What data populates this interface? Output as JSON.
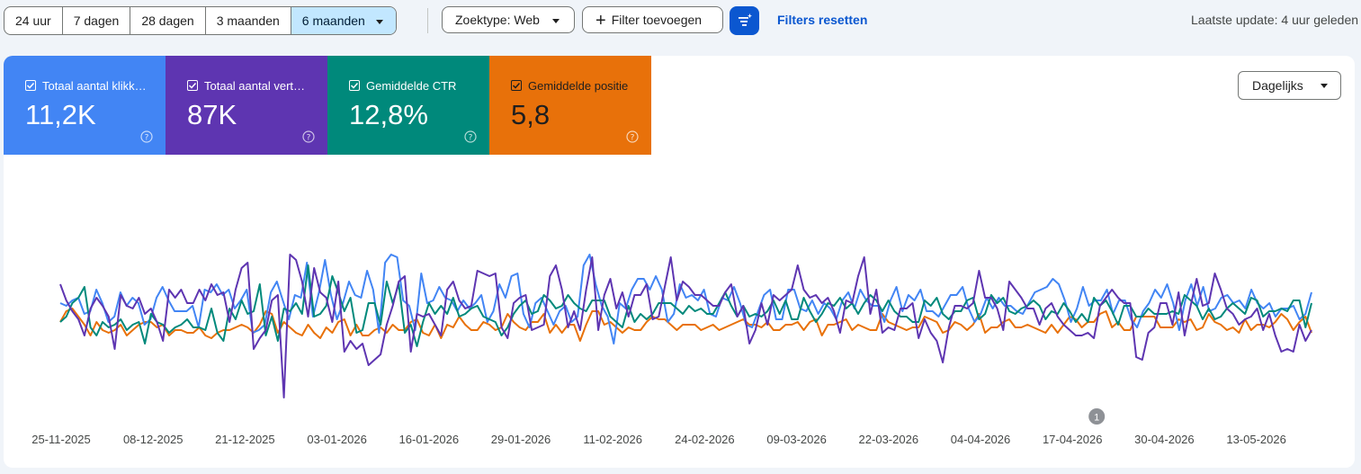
{
  "toolbar": {
    "ranges": [
      "24 uur",
      "7 dagen",
      "28 dagen",
      "3 maanden",
      "6 maanden"
    ],
    "active_range": "6 maanden",
    "search_type": "Zoektype: Web",
    "add_filter": "Filter toevoegen",
    "reset_filters": "Filters resetten",
    "last_update": "Laatste update: 4 uur geleden"
  },
  "metrics": {
    "clicks": {
      "label": "Totaal aantal klikk…",
      "value": "11,2K",
      "color": "#4285f4"
    },
    "impressions": {
      "label": "Totaal aantal vert…",
      "value": "87K",
      "color": "#5e35b1"
    },
    "ctr": {
      "label": "Gemiddelde CTR",
      "value": "12,8%",
      "color": "#00897b"
    },
    "position": {
      "label": "Gemiddelde positie",
      "value": "5,8",
      "color": "#e8710a"
    }
  },
  "granularity": "Dagelijks",
  "annotation_badge": "1",
  "chart_data": {
    "type": "line",
    "x_tick_labels": [
      "25-11-2025",
      "08-12-2025",
      "21-12-2025",
      "03-01-2026",
      "16-01-2026",
      "29-01-2026",
      "11-02-2026",
      "24-02-2026",
      "09-03-2026",
      "22-03-2026",
      "04-04-2026",
      "17-04-2026",
      "30-04-2026",
      "13-05-2026"
    ],
    "annotation": {
      "date": "17-04-2026",
      "label": "1"
    },
    "series": [
      {
        "name": "Totaal aantal vert…",
        "color": "#5e35b1",
        "values": [
          62,
          56,
          52,
          49,
          43,
          53,
          57,
          54,
          50,
          38,
          58,
          54,
          53,
          57,
          51,
          53,
          48,
          41,
          60,
          57,
          60,
          55,
          55,
          60,
          56,
          62,
          58,
          59,
          48,
          60,
          68,
          70,
          38,
          42,
          45,
          56,
          58,
          20,
          73,
          71,
          63,
          50,
          68,
          59,
          57,
          48,
          63,
          37,
          41,
          38,
          40,
          32,
          34,
          36,
          47,
          54,
          63,
          65,
          37,
          51,
          50,
          51,
          47,
          43,
          60,
          63,
          56,
          53,
          54,
          67,
          66,
          65,
          66,
          46,
          42,
          55,
          57,
          58,
          45,
          46,
          47,
          65,
          69,
          60,
          46,
          52,
          45,
          60,
          72,
          45,
          58,
          64,
          53,
          59,
          50,
          58,
          58,
          62,
          49,
          50,
          61,
          72,
          56,
          63,
          61,
          58,
          58,
          56,
          54,
          54,
          59,
          62,
          50,
          54,
          40,
          45,
          55,
          47,
          58,
          56,
          58,
          60,
          69,
          60,
          57,
          58,
          55,
          57,
          52,
          44,
          56,
          55,
          65,
          72,
          51,
          60,
          44,
          46,
          45,
          53,
          53,
          55,
          42,
          49,
          44,
          41,
          33,
          46,
          54,
          54,
          53,
          55,
          67,
          57,
          57,
          53,
          45,
          63,
          60,
          57,
          53,
          53,
          47,
          53,
          55,
          50,
          47,
          45,
          43,
          43,
          44,
          42,
          54,
          57,
          60,
          57,
          55,
          55,
          35,
          34,
          44,
          46,
          55,
          55,
          47,
          59,
          43,
          54,
          64,
          54,
          55,
          66,
          60,
          53,
          51,
          47,
          49,
          50,
          53,
          45,
          51,
          43,
          37,
          38,
          37,
          47,
          41,
          45
        ]
      },
      {
        "name": "Totaal aantal klikk…",
        "color": "#4285f4",
        "values": [
          55,
          54,
          56,
          57,
          51,
          52,
          60,
          55,
          48,
          50,
          59,
          54,
          57,
          55,
          47,
          49,
          57,
          61,
          56,
          52,
          52,
          52,
          54,
          46,
          60,
          59,
          62,
          58,
          60,
          53,
          56,
          60,
          44,
          45,
          47,
          59,
          63,
          56,
          49,
          58,
          57,
          70,
          50,
          59,
          71,
          58,
          49,
          55,
          63,
          58,
          57,
          67,
          60,
          44,
          70,
          73,
          72,
          56,
          54,
          45,
          66,
          55,
          56,
          61,
          57,
          56,
          52,
          56,
          53,
          55,
          58,
          48,
          52,
          62,
          57,
          65,
          66,
          51,
          46,
          55,
          57,
          52,
          47,
          52,
          54,
          48,
          50,
          69,
          73,
          62,
          54,
          50,
          40,
          55,
          53,
          60,
          64,
          64,
          60,
          65,
          60,
          48,
          51,
          62,
          57,
          58,
          56,
          60,
          51,
          50,
          57,
          56,
          61,
          55,
          47,
          46,
          52,
          58,
          60,
          49,
          49,
          60,
          60,
          53,
          52,
          56,
          51,
          55,
          53,
          49,
          56,
          59,
          53,
          60,
          56,
          54,
          54,
          48,
          56,
          61,
          52,
          58,
          56,
          60,
          52,
          52,
          50,
          54,
          58,
          58,
          61,
          53,
          48,
          51,
          57,
          53,
          57,
          54,
          54,
          52,
          51,
          55,
          59,
          60,
          61,
          64,
          62,
          56,
          48,
          53,
          61,
          54,
          56,
          56,
          60,
          51,
          56,
          56,
          49,
          46,
          52,
          55,
          60,
          57,
          62,
          55,
          45,
          56,
          62,
          54,
          61,
          52,
          53,
          57,
          58,
          55,
          56,
          53,
          60,
          55,
          53,
          55,
          50,
          53,
          53,
          54,
          49,
          51,
          59
        ]
      },
      {
        "name": "Gemiddelde CTR",
        "color": "#00897b",
        "values": [
          48,
          50,
          55,
          57,
          61,
          46,
          43,
          48,
          46,
          47,
          49,
          45,
          47,
          48,
          40,
          51,
          48,
          47,
          44,
          46,
          47,
          49,
          46,
          46,
          45,
          53,
          44,
          41,
          53,
          49,
          56,
          51,
          52,
          62,
          43,
          50,
          41,
          53,
          52,
          55,
          51,
          69,
          50,
          51,
          54,
          65,
          59,
          52,
          57,
          44,
          45,
          55,
          55,
          47,
          63,
          55,
          62,
          44,
          47,
          39,
          48,
          55,
          51,
          54,
          51,
          57,
          50,
          51,
          53,
          54,
          50,
          49,
          48,
          43,
          46,
          51,
          54,
          56,
          51,
          52,
          58,
          56,
          53,
          54,
          58,
          55,
          53,
          52,
          56,
          56,
          56,
          50,
          48,
          46,
          54,
          48,
          51,
          49,
          51,
          55,
          55,
          55,
          53,
          51,
          54,
          52,
          53,
          51,
          51,
          55,
          59,
          54,
          50,
          54,
          50,
          51,
          50,
          52,
          56,
          51,
          56,
          49,
          49,
          57,
          52,
          48,
          51,
          55,
          54,
          57,
          53,
          55,
          51,
          55,
          58,
          56,
          52,
          56,
          52,
          50,
          50,
          48,
          48,
          56,
          54,
          57,
          51,
          49,
          52,
          52,
          56,
          57,
          49,
          51,
          58,
          55,
          57,
          52,
          51,
          53,
          54,
          56,
          54,
          49,
          52,
          51,
          55,
          52,
          48,
          51,
          48,
          57,
          54,
          56,
          52,
          47,
          54,
          54,
          50,
          50,
          53,
          51,
          51,
          51,
          52,
          51,
          58,
          56,
          54,
          49,
          53,
          49,
          50,
          53,
          55,
          53,
          51,
          57,
          56,
          50,
          52,
          52,
          53,
          52,
          56,
          56,
          46,
          55
        ]
      },
      {
        "name": "Gemiddelde positie",
        "color": "#e8710a",
        "values": [
          48,
          52,
          53,
          50,
          47,
          43,
          48,
          45,
          44,
          45,
          47,
          43,
          45,
          47,
          48,
          48,
          46,
          47,
          43,
          45,
          45,
          44,
          44,
          46,
          43,
          42,
          44,
          45,
          45,
          46,
          47,
          46,
          44,
          47,
          52,
          51,
          44,
          48,
          46,
          44,
          43,
          47,
          44,
          42,
          46,
          44,
          48,
          49,
          43,
          47,
          43,
          43,
          45,
          46,
          44,
          47,
          45,
          45,
          48,
          49,
          44,
          43,
          47,
          42,
          47,
          46,
          50,
          47,
          45,
          45,
          48,
          47,
          45,
          46,
          51,
          48,
          46,
          45,
          48,
          48,
          51,
          44,
          47,
          44,
          47,
          47,
          41,
          47,
          52,
          52,
          47,
          48,
          46,
          44,
          46,
          45,
          45,
          48,
          50,
          49,
          49,
          47,
          45,
          47,
          47,
          47,
          45,
          46,
          47,
          45,
          46,
          47,
          48,
          49,
          47,
          47,
          46,
          48,
          45,
          45,
          47,
          47,
          48,
          45,
          48,
          49,
          43,
          47,
          47,
          48,
          49,
          45,
          47,
          46,
          45,
          45,
          51,
          48,
          47,
          46,
          45,
          46,
          46,
          50,
          49,
          48,
          44,
          45,
          48,
          47,
          45,
          47,
          51,
          44,
          46,
          46,
          48,
          49,
          46,
          46,
          47,
          46,
          45,
          44,
          47,
          44,
          47,
          50,
          49,
          46,
          48,
          48,
          51,
          52,
          46,
          48,
          45,
          45,
          50,
          50,
          50,
          50,
          46,
          46,
          46,
          49,
          48,
          49,
          45,
          46,
          51,
          48,
          47,
          45,
          46,
          44,
          49,
          45,
          47,
          47,
          46,
          48,
          51,
          49,
          45,
          48,
          50,
          44
        ]
      }
    ]
  }
}
